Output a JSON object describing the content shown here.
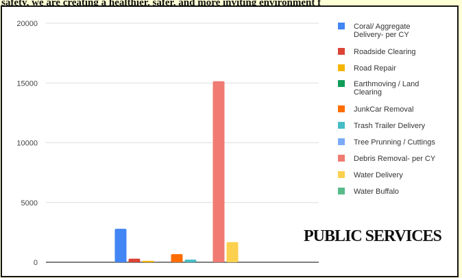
{
  "caption": "safety, we are creating a healthier, safer, and more inviting environment f",
  "banner": "PUBLIC SERVICES",
  "chart_data": {
    "type": "bar",
    "title": "",
    "xlabel": "",
    "ylabel": "",
    "ylim": [
      0,
      20000
    ],
    "yticks": [
      0,
      5000,
      10000,
      15000,
      20000
    ],
    "grid": true,
    "legend_position": "right",
    "groups": [
      {
        "bars": [
          {
            "series": "Coral/ Aggregate Delivery- per CY",
            "value": 2800
          },
          {
            "series": "Roadside Clearing",
            "value": 300
          },
          {
            "series": "Road Repair",
            "value": 120
          }
        ]
      },
      {
        "bars": [
          {
            "series": "JunkCar Removal",
            "value": 680
          },
          {
            "series": "Trash Trailer Delivery",
            "value": 220
          }
        ]
      },
      {
        "bars": [
          {
            "series": "Debris Removal- per CY",
            "value": 15150
          },
          {
            "series": "Water Delivery",
            "value": 1680
          }
        ]
      }
    ],
    "series": [
      {
        "name": "Coral/ Aggregate Delivery- per CY",
        "color": "#4285f4"
      },
      {
        "name": "Roadside Clearing",
        "color": "#db4437"
      },
      {
        "name": "Road Repair",
        "color": "#f4b400"
      },
      {
        "name": "Earthmoving / Land Clearing",
        "color": "#0f9d58"
      },
      {
        "name": "JunkCar Removal",
        "color": "#ff6d01"
      },
      {
        "name": "Trash Trailer Delivery",
        "color": "#46bdc6"
      },
      {
        "name": "Tree Prunning / Cuttings",
        "color": "#7baaf7"
      },
      {
        "name": "Debris Removal- per CY",
        "color": "#f07b72"
      },
      {
        "name": "Water Delivery",
        "color": "#fcd04f"
      },
      {
        "name": "Water Buffalo",
        "color": "#57bb8a"
      }
    ]
  }
}
